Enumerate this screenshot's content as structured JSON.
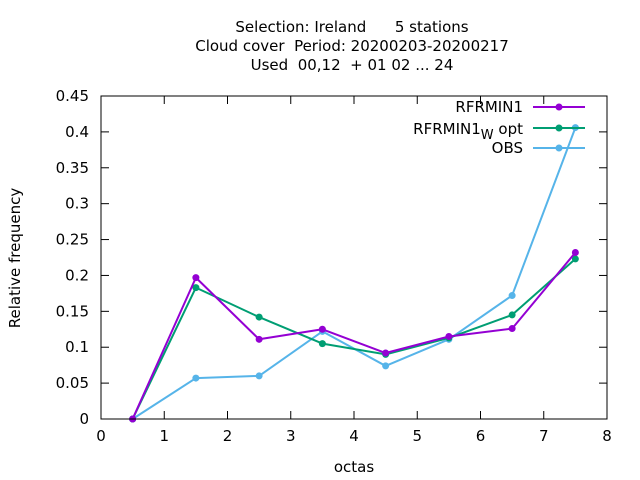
{
  "chart_data": {
    "type": "line",
    "title_lines": [
      "Selection: Ireland      5 stations",
      "Cloud cover  Period: 20200203-20200217",
      "Used  00,12  + 01 02 ... 24"
    ],
    "xlabel": "octas",
    "ylabel": "Relative frequency",
    "xlim": [
      0,
      8
    ],
    "ylim": [
      0,
      0.45
    ],
    "xticks": [
      "0",
      "1",
      "2",
      "3",
      "4",
      "5",
      "6",
      "7",
      "8"
    ],
    "yticks": [
      "0",
      "0.05",
      "0.1",
      "0.15",
      "0.2",
      "0.25",
      "0.3",
      "0.35",
      "0.4",
      "0.45"
    ],
    "x": [
      0.5,
      1.5,
      2.5,
      3.5,
      4.5,
      5.5,
      6.5,
      7.5
    ],
    "legend_position": "top-right",
    "series": [
      {
        "name": "RFRMIN1",
        "color": "#9400d3",
        "values": [
          0.0,
          0.197,
          0.111,
          0.125,
          0.092,
          0.115,
          0.126,
          0.232
        ]
      },
      {
        "name_main": "RFRMIN1",
        "name_sub": "W",
        "name_rest": " opt",
        "color": "#009e73",
        "values": [
          0.0,
          0.183,
          0.142,
          0.105,
          0.09,
          0.113,
          0.145,
          0.223
        ]
      },
      {
        "name": "OBS",
        "color": "#56b4e9",
        "values": [
          0.0,
          0.057,
          0.06,
          0.122,
          0.074,
          0.111,
          0.172,
          0.406
        ]
      }
    ]
  }
}
